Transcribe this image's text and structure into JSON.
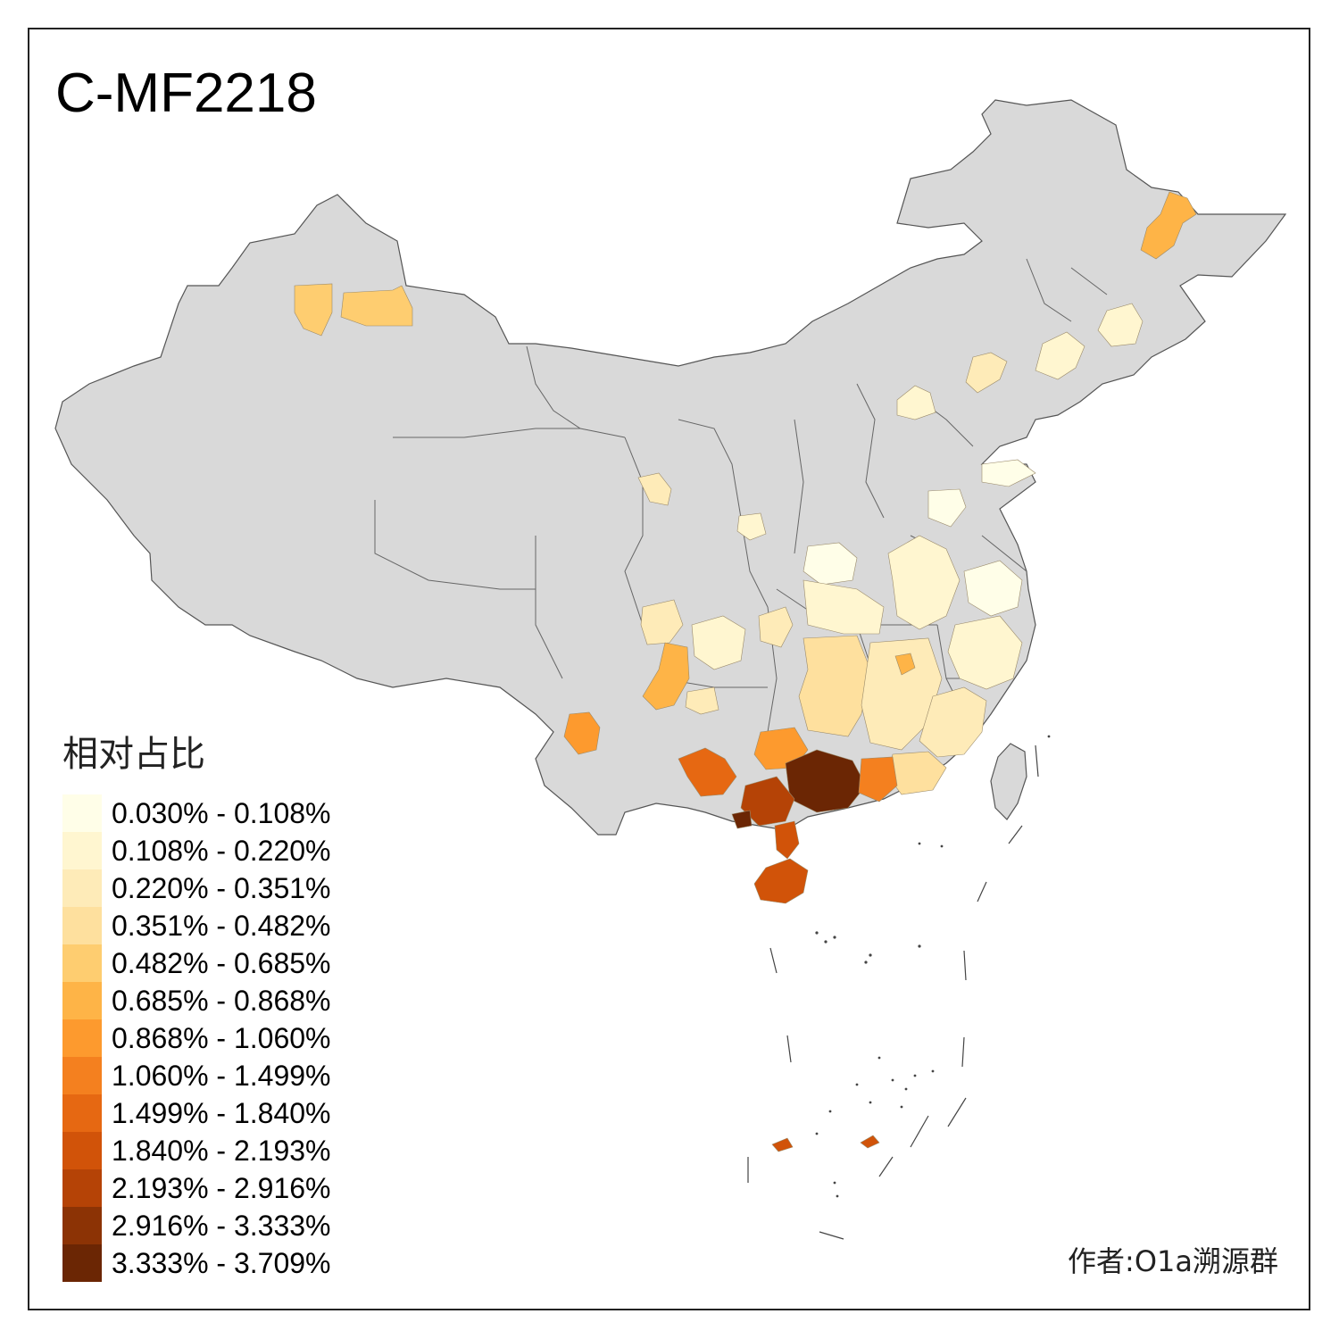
{
  "title": "C-MF2218",
  "legend": {
    "title": "相对占比",
    "bins": [
      {
        "label": "0.030% - 0.108%",
        "color": "#fffee8"
      },
      {
        "label": "0.108% - 0.220%",
        "color": "#fff6d0"
      },
      {
        "label": "0.220% - 0.351%",
        "color": "#feebb8"
      },
      {
        "label": "0.351% - 0.482%",
        "color": "#fee09e"
      },
      {
        "label": "0.482% - 0.685%",
        "color": "#fecd70"
      },
      {
        "label": "0.685% - 0.868%",
        "color": "#feb447"
      },
      {
        "label": "0.868% - 1.060%",
        "color": "#fd9a2e"
      },
      {
        "label": "1.060% - 1.499%",
        "color": "#f4801f"
      },
      {
        "label": "1.499% - 1.840%",
        "color": "#e66812"
      },
      {
        "label": "1.840% - 2.193%",
        "color": "#d15309"
      },
      {
        "label": "2.193% - 2.916%",
        "color": "#b54306"
      },
      {
        "label": "2.916% - 3.333%",
        "color": "#8c3305"
      },
      {
        "label": "3.333% - 3.709%",
        "color": "#6b2604"
      }
    ]
  },
  "author": "作者:O1a溯源群",
  "regions": [
    {
      "name": "altay-west",
      "bin": 4
    },
    {
      "name": "altay-east",
      "bin": 4
    },
    {
      "name": "heilongjiang-east",
      "bin": 5
    },
    {
      "name": "jilin-center",
      "bin": 1
    },
    {
      "name": "liaoning-north",
      "bin": 1
    },
    {
      "name": "liaoning-west",
      "bin": 2
    },
    {
      "name": "hebei",
      "bin": 1
    },
    {
      "name": "shandong-east",
      "bin": 0
    },
    {
      "name": "shandong-west",
      "bin": 0
    },
    {
      "name": "gansu-patch",
      "bin": 2
    },
    {
      "name": "shaanxi-north",
      "bin": 1
    },
    {
      "name": "henan",
      "bin": 0
    },
    {
      "name": "anhui",
      "bin": 1
    },
    {
      "name": "jiangsu-south",
      "bin": 0
    },
    {
      "name": "sichuan-west",
      "bin": 2
    },
    {
      "name": "sichuan-east",
      "bin": 1
    },
    {
      "name": "chongqing",
      "bin": 2
    },
    {
      "name": "hubei",
      "bin": 1
    },
    {
      "name": "yunnan-north",
      "bin": 5
    },
    {
      "name": "yunnan-west",
      "bin": 6
    },
    {
      "name": "guizhou-east",
      "bin": 2
    },
    {
      "name": "hunan",
      "bin": 3
    },
    {
      "name": "jiangxi",
      "bin": 2
    },
    {
      "name": "jiangxi-spot",
      "bin": 5
    },
    {
      "name": "zhejiang",
      "bin": 1
    },
    {
      "name": "fujian",
      "bin": 2
    },
    {
      "name": "guangdong-east",
      "bin": 3
    },
    {
      "name": "guangxi-west",
      "bin": 8
    },
    {
      "name": "guangxi-north",
      "bin": 6
    },
    {
      "name": "guangxi-core",
      "bin": 12
    },
    {
      "name": "guangxi-south",
      "bin": 10
    },
    {
      "name": "guangdong-west",
      "bin": 7
    },
    {
      "name": "leizhou",
      "bin": 9
    },
    {
      "name": "hainan",
      "bin": 9
    },
    {
      "name": "beibu-coast",
      "bin": 12
    },
    {
      "name": "nansha-a",
      "bin": 9
    },
    {
      "name": "nansha-b",
      "bin": 9
    }
  ]
}
